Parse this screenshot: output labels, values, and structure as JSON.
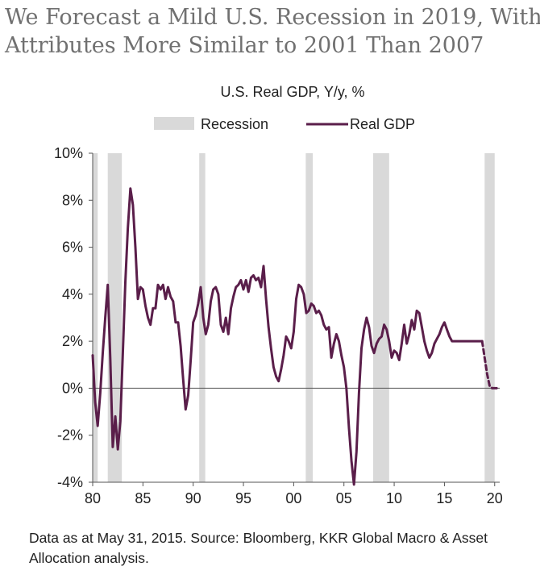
{
  "title": {
    "line1": "We Forecast a Mild U.S. Recession in 2019, With",
    "line2": "Attributes More Similar to 2001 Than 2007"
  },
  "footnote": {
    "line1": "Data as at May 31, 2015. Source: Bloomberg, KKR Global Macro & Asset",
    "line2": "Allocation analysis."
  },
  "chart_data": {
    "type": "line",
    "title": "U.S. Real GDP, Y/y, %",
    "xlabel": "",
    "ylabel": "",
    "xlim": [
      1980,
      2020.5
    ],
    "ylim": [
      -4,
      10
    ],
    "x_ticks": [
      1980,
      1985,
      1990,
      1995,
      2000,
      2005,
      2010,
      2015,
      2020
    ],
    "x_tick_labels": [
      "80",
      "85",
      "90",
      "95",
      "00",
      "05",
      "10",
      "15",
      "20"
    ],
    "y_ticks": [
      -4,
      -2,
      0,
      2,
      4,
      6,
      8,
      10
    ],
    "y_tick_labels": [
      "-4%",
      "-2%",
      "0%",
      "2%",
      "4%",
      "6%",
      "8%",
      "10%"
    ],
    "legend": {
      "placement": "top",
      "items": [
        {
          "name": "Recession",
          "kind": "band"
        },
        {
          "name": "Real GDP",
          "kind": "line"
        }
      ]
    },
    "colors": {
      "line": "#5a1e4a",
      "band": "#d9d9d9",
      "axis": "#555555",
      "text": "#222222"
    },
    "recessions": [
      [
        1980.0,
        1980.5
      ],
      [
        1981.5,
        1982.9
      ],
      [
        1990.6,
        1991.2
      ],
      [
        2001.2,
        2001.9
      ],
      [
        2007.9,
        2009.5
      ],
      [
        2019.0,
        2020.0
      ]
    ],
    "series": [
      {
        "name": "Real GDP",
        "x": [
          1980.0,
          1980.25,
          1980.5,
          1980.75,
          1981.0,
          1981.25,
          1981.5,
          1981.75,
          1982.0,
          1982.25,
          1982.5,
          1982.75,
          1983.0,
          1983.25,
          1983.5,
          1983.75,
          1984.0,
          1984.25,
          1984.5,
          1984.75,
          1985.0,
          1985.25,
          1985.5,
          1985.75,
          1986.0,
          1986.25,
          1986.5,
          1986.75,
          1987.0,
          1987.25,
          1987.5,
          1987.75,
          1988.0,
          1988.25,
          1988.5,
          1988.75,
          1989.0,
          1989.25,
          1989.5,
          1989.75,
          1990.0,
          1990.25,
          1990.5,
          1990.75,
          1991.0,
          1991.25,
          1991.5,
          1991.75,
          1992.0,
          1992.25,
          1992.5,
          1992.75,
          1993.0,
          1993.25,
          1993.5,
          1993.75,
          1994.0,
          1994.25,
          1994.5,
          1994.75,
          1995.0,
          1995.25,
          1995.5,
          1995.75,
          1996.0,
          1996.25,
          1996.5,
          1996.75,
          1997.0,
          1997.25,
          1997.5,
          1997.75,
          1998.0,
          1998.25,
          1998.5,
          1998.75,
          1999.0,
          1999.25,
          1999.5,
          1999.75,
          2000.0,
          2000.25,
          2000.5,
          2000.75,
          2001.0,
          2001.25,
          2001.5,
          2001.75,
          2002.0,
          2002.25,
          2002.5,
          2002.75,
          2003.0,
          2003.25,
          2003.5,
          2003.75,
          2004.0,
          2004.25,
          2004.5,
          2004.75,
          2005.0,
          2005.25,
          2005.5,
          2005.75,
          2006.0,
          2006.25,
          2006.5,
          2006.75,
          2007.0,
          2007.25,
          2007.5,
          2007.75,
          2008.0,
          2008.25,
          2008.5,
          2008.75,
          2009.0,
          2009.25,
          2009.5,
          2009.75,
          2010.0,
          2010.25,
          2010.5,
          2010.75,
          2011.0,
          2011.25,
          2011.5,
          2011.75,
          2012.0,
          2012.25,
          2012.5,
          2012.75,
          2013.0,
          2013.25,
          2013.5,
          2013.75,
          2014.0,
          2014.25,
          2014.5,
          2014.75,
          2015.0,
          2015.25,
          2015.5,
          2015.75,
          2016.0,
          2016.25,
          2016.5,
          2016.75,
          2017.0,
          2017.25,
          2017.5,
          2017.75,
          2018.0,
          2018.25,
          2018.5,
          2018.75
        ],
        "values": [
          1.4,
          -0.6,
          -1.6,
          -0.2,
          1.5,
          3.0,
          4.4,
          1.3,
          -2.5,
          -1.2,
          -2.6,
          -1.4,
          1.5,
          4.5,
          6.8,
          8.5,
          7.8,
          6.0,
          3.8,
          4.3,
          4.2,
          3.5,
          3.0,
          2.7,
          3.4,
          3.4,
          4.4,
          4.2,
          4.4,
          3.8,
          4.3,
          3.9,
          3.7,
          2.8,
          2.8,
          1.8,
          0.4,
          -0.9,
          -0.3,
          1.2,
          2.8,
          3.1,
          3.6,
          4.3,
          3.0,
          2.3,
          2.7,
          3.7,
          4.2,
          4.3,
          4.0,
          2.7,
          2.4,
          3.0,
          2.3,
          3.4,
          3.9,
          4.3,
          4.4,
          4.6,
          4.2,
          4.6,
          4.1,
          4.7,
          4.8,
          4.6,
          4.7,
          4.3,
          5.2,
          3.8,
          2.6,
          1.7,
          0.9,
          0.5,
          0.3,
          0.8,
          1.4,
          2.2,
          2.0,
          1.7,
          2.4,
          3.8,
          4.4,
          4.3,
          4.0,
          3.2,
          3.3,
          3.6,
          3.5,
          3.2,
          3.3,
          3.1,
          2.7,
          2.5,
          2.6,
          1.3,
          1.9,
          2.3,
          2.0,
          1.4,
          0.9,
          0.0,
          -1.7,
          -3.1,
          -4.1,
          -2.7,
          -0.2,
          1.7,
          2.5,
          3.0,
          2.6,
          1.8,
          1.5,
          1.9,
          2.1,
          2.2,
          2.7,
          2.5,
          2.0,
          1.3,
          1.6,
          1.5,
          1.2,
          1.9,
          2.7,
          1.9,
          2.3,
          2.9,
          2.5,
          3.3,
          3.2,
          2.6,
          2.0,
          1.6,
          1.3,
          1.5,
          1.9,
          2.1,
          2.3,
          2.6,
          2.8,
          2.5,
          2.2,
          2.0,
          2.0,
          2.0,
          2.0,
          2.0,
          2.0,
          2.0,
          2.0,
          2.0,
          2.0,
          2.0,
          2.0,
          2.0
        ]
      },
      {
        "name": "Real GDP forecast",
        "style": "dashed",
        "x": [
          2018.75,
          2019.0,
          2019.25,
          2019.5,
          2019.75,
          2020.0,
          2020.5
        ],
        "values": [
          2.0,
          1.3,
          0.6,
          0.1,
          0.0,
          0.0,
          0.0
        ]
      }
    ]
  }
}
